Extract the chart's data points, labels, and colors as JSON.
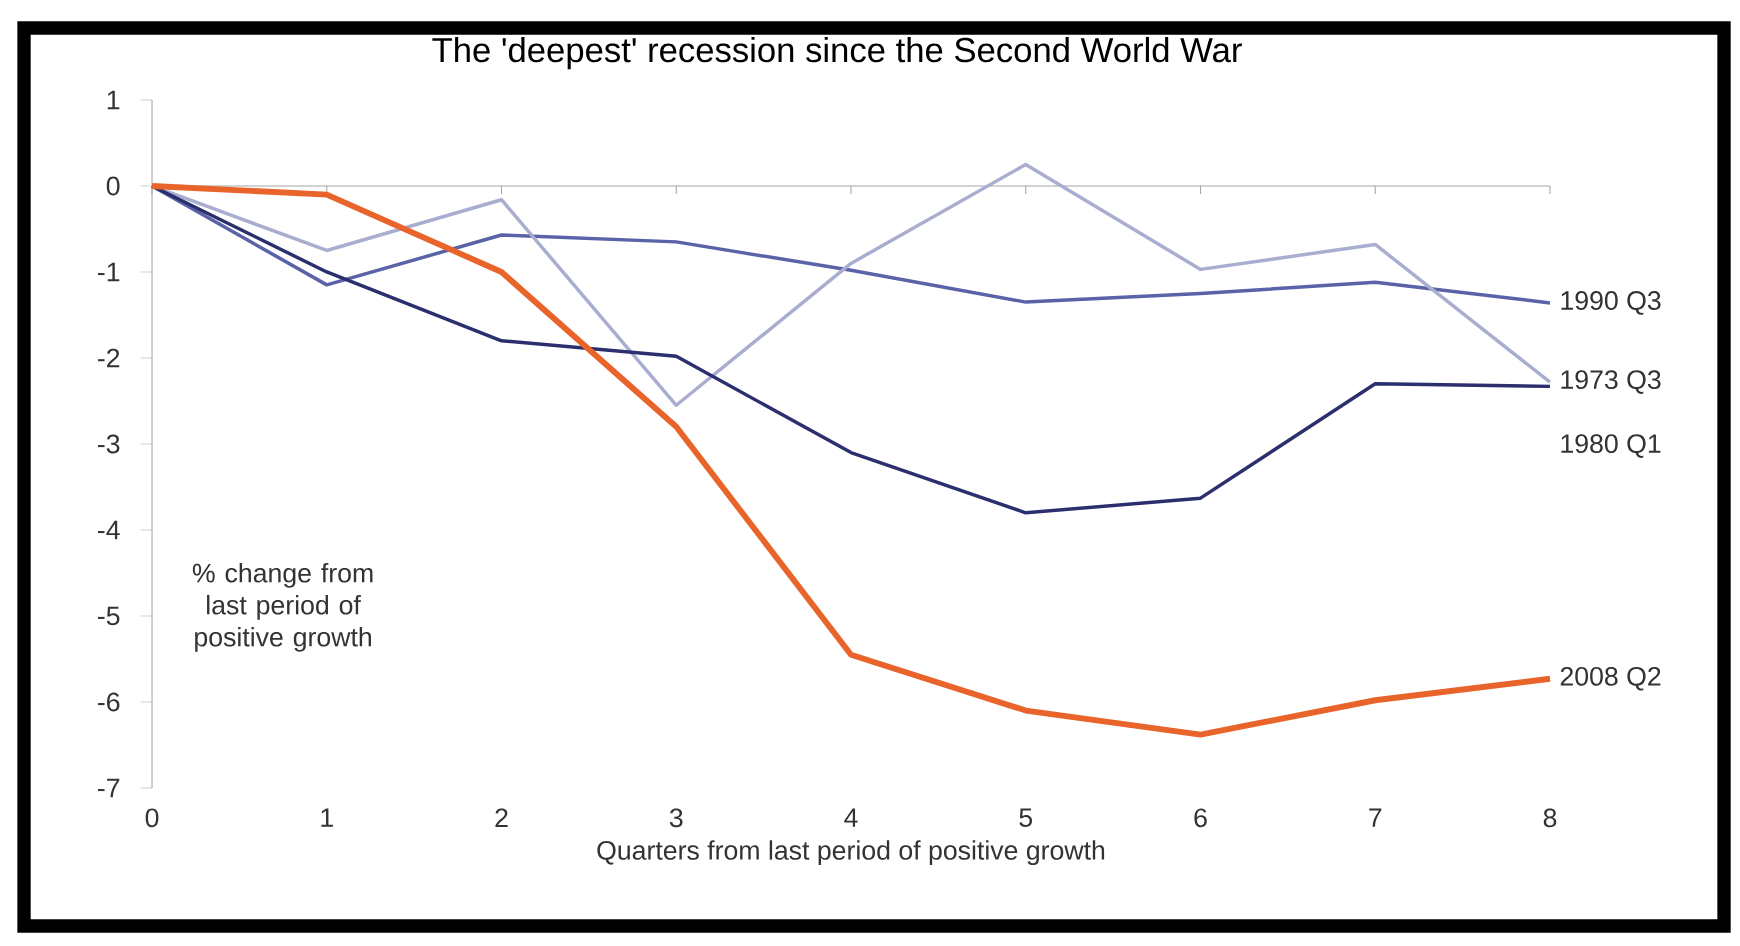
{
  "chart_data": {
    "type": "line",
    "title": "The 'deepest' recession since the Second World War",
    "xlabel": "Quarters from last period of positive growth",
    "ylabel": "% change from last period of positive growth",
    "x": [
      0,
      1,
      2,
      3,
      4,
      5,
      6,
      7,
      8
    ],
    "series": [
      {
        "name": "1990 Q3",
        "color": "#5a63a8",
        "values": [
          0,
          -1.15,
          -0.57,
          -0.65,
          -0.98,
          -1.35,
          -1.25,
          -1.12,
          -1.36
        ]
      },
      {
        "name": "1973 Q3",
        "color": "#a9adcf",
        "values": [
          0,
          -0.75,
          -0.16,
          -2.55,
          -0.9,
          0.25,
          -0.97,
          -0.68,
          -2.28
        ]
      },
      {
        "name": "1980 Q1",
        "color": "#2b2f6e",
        "values": [
          0,
          -1.0,
          -1.8,
          -1.98,
          -3.1,
          -3.8,
          -3.63,
          -2.3,
          -2.33
        ]
      },
      {
        "name": "2008 Q2",
        "color": "#e8642a",
        "values": [
          0,
          -0.1,
          -1.0,
          -2.8,
          -5.45,
          -6.1,
          -6.38,
          -5.98,
          -5.73
        ]
      }
    ],
    "xlim": [
      0,
      8
    ],
    "ylim": [
      -7,
      1
    ],
    "xticks": [
      0,
      1,
      2,
      3,
      4,
      5,
      6,
      7,
      8
    ],
    "yticks": [
      -7,
      -6,
      -5,
      -4,
      -3,
      -2,
      -1,
      0,
      1
    ],
    "marker": "none",
    "line_style": "solid"
  }
}
